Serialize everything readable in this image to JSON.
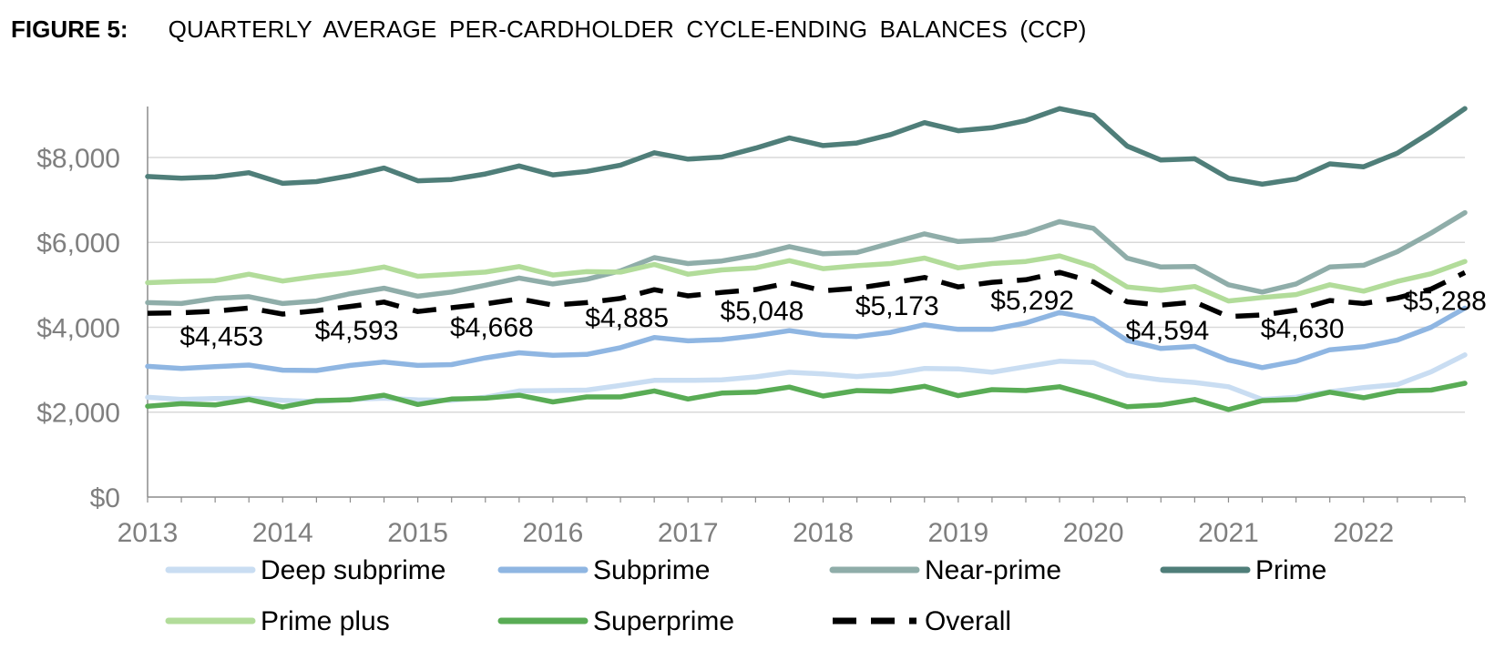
{
  "figure": {
    "label": "FIGURE 5:",
    "title": "QUARTERLY AVERAGE PER-CARDHOLDER CYCLE-ENDING BALANCES (CCP)"
  },
  "chart_data": {
    "type": "line",
    "x": [
      "2013Q1",
      "2013Q2",
      "2013Q3",
      "2013Q4",
      "2014Q1",
      "2014Q2",
      "2014Q3",
      "2014Q4",
      "2015Q1",
      "2015Q2",
      "2015Q3",
      "2015Q4",
      "2016Q1",
      "2016Q2",
      "2016Q3",
      "2016Q4",
      "2017Q1",
      "2017Q2",
      "2017Q3",
      "2017Q4",
      "2018Q1",
      "2018Q2",
      "2018Q3",
      "2018Q4",
      "2019Q1",
      "2019Q2",
      "2019Q3",
      "2019Q4",
      "2020Q1",
      "2020Q2",
      "2020Q3",
      "2020Q4",
      "2021Q1",
      "2021Q2",
      "2021Q3",
      "2021Q4",
      "2022Q1",
      "2022Q2",
      "2022Q3",
      "2022Q4"
    ],
    "x_tick_labels": [
      "2013",
      "2014",
      "2015",
      "2016",
      "2017",
      "2018",
      "2019",
      "2020",
      "2021",
      "2022"
    ],
    "y_tick_labels": [
      "$0",
      "$2,000",
      "$4,000",
      "$6,000",
      "$8,000"
    ],
    "ylim": [
      0,
      9200
    ],
    "grid": "horizontal",
    "legend_position": "bottom",
    "series": [
      {
        "name": "Deep subprime",
        "color": "#c9ddf2",
        "dash": "solid",
        "values": [
          2350,
          2300,
          2320,
          2330,
          2280,
          2250,
          2300,
          2330,
          2290,
          2280,
          2350,
          2500,
          2510,
          2520,
          2630,
          2750,
          2750,
          2760,
          2830,
          2940,
          2900,
          2840,
          2900,
          3030,
          3020,
          2940,
          3070,
          3200,
          3170,
          2870,
          2760,
          2700,
          2600,
          2300,
          2350,
          2480,
          2580,
          2650,
          2950,
          3350
        ]
      },
      {
        "name": "Subprime",
        "color": "#8fb6e2",
        "dash": "solid",
        "values": [
          3080,
          3030,
          3070,
          3110,
          2990,
          2980,
          3100,
          3180,
          3100,
          3120,
          3280,
          3400,
          3340,
          3360,
          3520,
          3760,
          3680,
          3710,
          3800,
          3920,
          3810,
          3780,
          3880,
          4060,
          3950,
          3950,
          4100,
          4350,
          4200,
          3690,
          3500,
          3550,
          3230,
          3050,
          3200,
          3470,
          3540,
          3700,
          4000,
          4450
        ]
      },
      {
        "name": "Near-prime",
        "color": "#8fada9",
        "dash": "solid",
        "values": [
          4580,
          4560,
          4680,
          4720,
          4560,
          4620,
          4790,
          4920,
          4730,
          4830,
          4990,
          5160,
          5020,
          5130,
          5330,
          5640,
          5500,
          5560,
          5700,
          5900,
          5730,
          5760,
          5980,
          6200,
          6020,
          6060,
          6220,
          6490,
          6330,
          5630,
          5420,
          5430,
          5000,
          4830,
          5020,
          5420,
          5460,
          5780,
          6220,
          6700
        ]
      },
      {
        "name": "Prime",
        "color": "#4f7e79",
        "dash": "solid",
        "values": [
          7550,
          7510,
          7540,
          7640,
          7390,
          7430,
          7570,
          7750,
          7450,
          7480,
          7610,
          7800,
          7590,
          7670,
          7820,
          8110,
          7960,
          8010,
          8220,
          8460,
          8280,
          8340,
          8540,
          8820,
          8630,
          8700,
          8870,
          9150,
          8990,
          8270,
          7940,
          7970,
          7510,
          7370,
          7490,
          7850,
          7780,
          8100,
          8600,
          9150
        ]
      },
      {
        "name": "Prime plus",
        "color": "#b2dc9a",
        "dash": "solid",
        "values": [
          5050,
          5080,
          5100,
          5250,
          5090,
          5200,
          5290,
          5420,
          5200,
          5250,
          5300,
          5430,
          5230,
          5310,
          5300,
          5480,
          5250,
          5350,
          5400,
          5570,
          5380,
          5450,
          5500,
          5630,
          5400,
          5500,
          5550,
          5680,
          5430,
          4950,
          4870,
          4960,
          4620,
          4700,
          4770,
          5000,
          4850,
          5080,
          5260,
          5550
        ]
      },
      {
        "name": "Superprime",
        "color": "#59ac55",
        "dash": "solid",
        "values": [
          2140,
          2200,
          2170,
          2300,
          2120,
          2270,
          2290,
          2400,
          2180,
          2310,
          2330,
          2400,
          2240,
          2360,
          2360,
          2500,
          2310,
          2450,
          2470,
          2590,
          2380,
          2510,
          2490,
          2610,
          2390,
          2530,
          2510,
          2600,
          2380,
          2130,
          2170,
          2300,
          2060,
          2270,
          2300,
          2470,
          2340,
          2500,
          2520,
          2680
        ]
      },
      {
        "name": "Overall",
        "color": "#000000",
        "dash": "dashed",
        "values": [
          4330,
          4340,
          4380,
          4453,
          4310,
          4390,
          4490,
          4593,
          4370,
          4460,
          4550,
          4668,
          4520,
          4580,
          4680,
          4885,
          4740,
          4820,
          4890,
          5048,
          4860,
          4920,
          5040,
          5173,
          4950,
          5060,
          5120,
          5292,
          5070,
          4600,
          4520,
          4594,
          4250,
          4290,
          4400,
          4630,
          4560,
          4690,
          4900,
          5288
        ]
      }
    ],
    "annotations": [
      {
        "text": "$4,453",
        "x": "2013Q4",
        "y": 4453
      },
      {
        "text": "$4,593",
        "x": "2014Q4",
        "y": 4593
      },
      {
        "text": "$4,668",
        "x": "2015Q4",
        "y": 4668
      },
      {
        "text": "$4,885",
        "x": "2016Q4",
        "y": 4885
      },
      {
        "text": "$5,048",
        "x": "2017Q4",
        "y": 5048
      },
      {
        "text": "$5,173",
        "x": "2018Q4",
        "y": 5173
      },
      {
        "text": "$5,292",
        "x": "2019Q4",
        "y": 5292
      },
      {
        "text": "$4,594",
        "x": "2020Q4",
        "y": 4594
      },
      {
        "text": "$4,630",
        "x": "2021Q4",
        "y": 4630
      },
      {
        "text": "$5,288",
        "x": "2022Q4",
        "y": 5288
      }
    ]
  }
}
